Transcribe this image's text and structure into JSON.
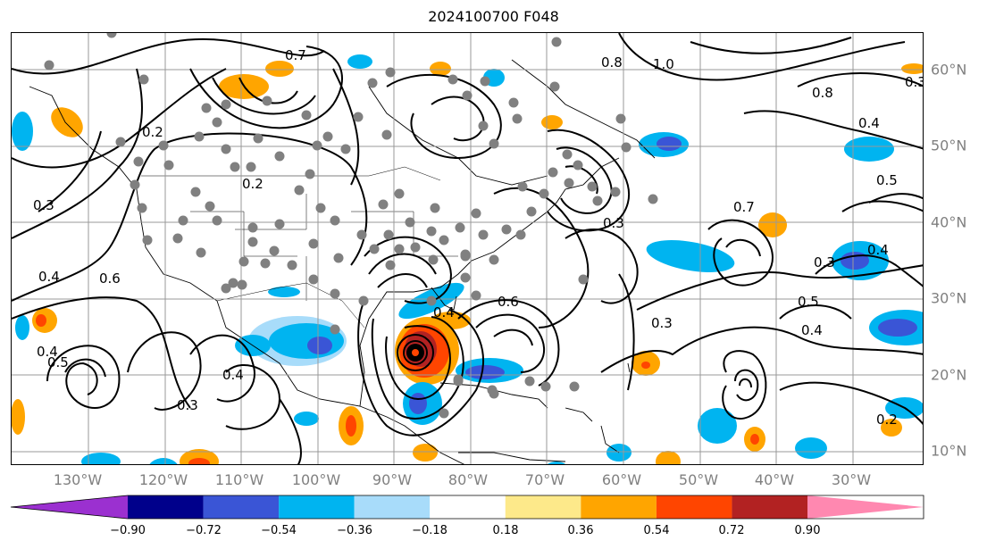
{
  "title": "2024100700 F048",
  "longitude_labels": [
    "130°W",
    "120°W",
    "110°W",
    "100°W",
    "90°W",
    "80°W",
    "70°W",
    "60°W",
    "50°W",
    "40°W",
    "30°W"
  ],
  "latitude_labels": [
    "60°N",
    "50°N",
    "40°N",
    "30°N",
    "20°N",
    "10°N"
  ],
  "colorbar": {
    "ticks": [
      "−0.90",
      "−0.72",
      "−0.54",
      "−0.36",
      "−0.18",
      "0.18",
      "0.36",
      "0.54",
      "0.72",
      "0.90"
    ],
    "colors": [
      "#9b30d0",
      "#00008b",
      "#3a55d6",
      "#00b4f0",
      "#a8dcfa",
      "#ffffff",
      "#fde98a",
      "#ffa500",
      "#ff4500",
      "#b22222",
      "#ff88b0"
    ]
  },
  "contour_labels": [
    "0.2",
    "0.3",
    "0.4",
    "0.5",
    "0.6",
    "0.7",
    "0.8",
    "1.0"
  ],
  "map": {
    "projection": "cylindrical",
    "lon_range": [
      "-137",
      "-17"
    ],
    "lat_range": [
      "7",
      "65"
    ],
    "storm_marker_color": "#000000",
    "station_marker_color": "#808080"
  }
}
